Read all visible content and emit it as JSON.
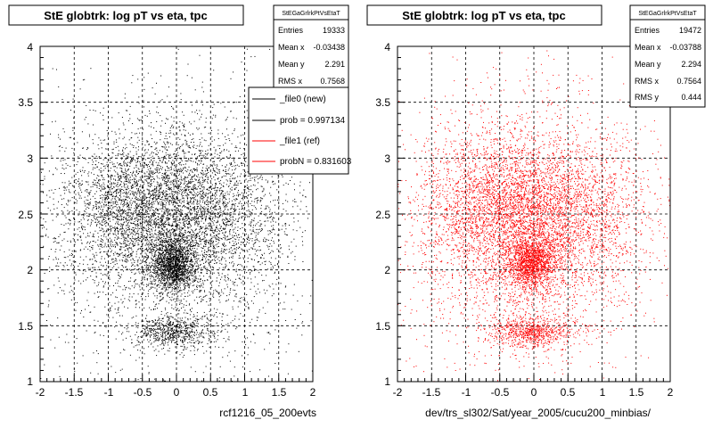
{
  "chart_data": [
    {
      "type": "scatter",
      "title": "StE globtrk: log pT vs eta, tpc",
      "xlabel": "rcf1216_05_200evts",
      "ylabel": "",
      "xlim": [
        -2,
        2
      ],
      "ylim": [
        1,
        4
      ],
      "x_ticks": [
        "-2",
        "-1.5",
        "-1",
        "-0.5",
        "0",
        "0.5",
        "1",
        "1.5",
        "2"
      ],
      "y_ticks": [
        "1",
        "1.5",
        "2",
        "2.5",
        "3",
        "3.5",
        "4"
      ],
      "grid": true,
      "marker_color": "#000000",
      "stats": {
        "name": "StEGaGrlrkPtVsEtaT",
        "rows": [
          {
            "label": "Entries",
            "value": "19333"
          },
          {
            "label": "Mean x",
            "value": "-0.03438"
          },
          {
            "label": "Mean y",
            "value": "2.291"
          },
          {
            "label": "RMS x",
            "value": "0.7568"
          }
        ]
      },
      "legend": [
        {
          "label": "_file0 (new)",
          "color": "#000000"
        },
        {
          "label": "prob = 0.997134",
          "color": "#000000"
        },
        {
          "label": "_file1 (ref)",
          "color": "#ff0000"
        },
        {
          "label": "probN = 0.831603",
          "color": "#ff0000"
        }
      ],
      "density_clusters": [
        {
          "x": -0.05,
          "y": 2.05,
          "sx": 0.17,
          "sy": 0.12,
          "weight": 0.18
        },
        {
          "x": -0.55,
          "y": 2.55,
          "sx": 0.6,
          "sy": 0.33,
          "weight": 0.3
        },
        {
          "x": 0.4,
          "y": 2.5,
          "sx": 0.6,
          "sy": 0.35,
          "weight": 0.22
        },
        {
          "x": -0.05,
          "y": 1.45,
          "sx": 0.3,
          "sy": 0.07,
          "weight": 0.07
        },
        {
          "x": 0.0,
          "y": 2.3,
          "sx": 0.95,
          "sy": 0.65,
          "weight": 0.23
        }
      ],
      "n_points_drawn": 9000
    },
    {
      "type": "scatter",
      "title": "StE globtrk: log pT vs eta, tpc",
      "xlabel": "dev/trs_sl302/Sat/year_2005/cucu200_minbias/",
      "ylabel": "",
      "xlim": [
        -2,
        2
      ],
      "ylim": [
        1,
        4
      ],
      "x_ticks": [
        "-2",
        "-1.5",
        "-1",
        "-0.5",
        "0",
        "0.5",
        "1",
        "1.5",
        "2"
      ],
      "y_ticks": [
        "1",
        "1.5",
        "2",
        "2.5",
        "3",
        "3.5",
        "4"
      ],
      "grid": true,
      "marker_color": "#ff0000",
      "stats": {
        "name": "StEGaGrlrkPtVsEtaT",
        "rows": [
          {
            "label": "Entries",
            "value": "19472"
          },
          {
            "label": "Mean x",
            "value": "-0.03788"
          },
          {
            "label": "Mean y",
            "value": "2.294"
          },
          {
            "label": "RMS x",
            "value": "0.7564"
          },
          {
            "label": "RMS y",
            "value": "0.444"
          }
        ]
      },
      "density_clusters": [
        {
          "x": -0.05,
          "y": 2.05,
          "sx": 0.17,
          "sy": 0.12,
          "weight": 0.15
        },
        {
          "x": -0.5,
          "y": 2.55,
          "sx": 0.6,
          "sy": 0.33,
          "weight": 0.3
        },
        {
          "x": 0.4,
          "y": 2.5,
          "sx": 0.6,
          "sy": 0.35,
          "weight": 0.22
        },
        {
          "x": -0.05,
          "y": 1.45,
          "sx": 0.3,
          "sy": 0.07,
          "weight": 0.08
        },
        {
          "x": 0.0,
          "y": 2.3,
          "sx": 0.95,
          "sy": 0.65,
          "weight": 0.25
        }
      ],
      "n_points_drawn": 9000
    }
  ]
}
